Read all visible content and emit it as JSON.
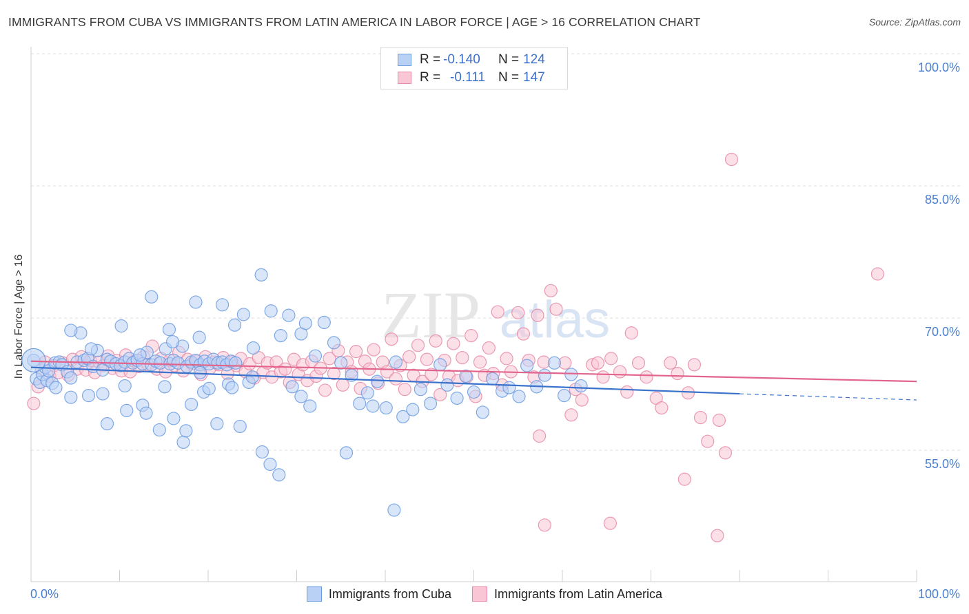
{
  "title": "IMMIGRANTS FROM CUBA VS IMMIGRANTS FROM LATIN AMERICA IN LABOR FORCE | AGE > 16 CORRELATION CHART",
  "source": "Source: ZipAtlas.com",
  "watermark": "ZIPatlas",
  "legend": {
    "r_label": "R =",
    "n_label": "N =",
    "series": [
      {
        "name": "Immigrants from Cuba",
        "r": "-0.140",
        "n": "124",
        "fill": "#b9d1f5",
        "stroke": "#6b9be0"
      },
      {
        "name": "Immigrants from Latin America",
        "r": "-0.111",
        "n": "147",
        "fill": "#f9c6d5",
        "stroke": "#e68aa6"
      }
    ]
  },
  "chart_data": {
    "type": "scatter",
    "title": "IMMIGRANTS FROM CUBA VS IMMIGRANTS FROM LATIN AMERICA IN LABOR FORCE | AGE > 16 CORRELATION CHART",
    "xlabel": "",
    "ylabel": "In Labor Force | Age > 16",
    "xlim": [
      0,
      100
    ],
    "ylim": [
      41,
      100
    ],
    "x_tick_labels": [
      "0.0%",
      "100.0%"
    ],
    "y_tick_labels": [
      "100.0%",
      "85.0%",
      "70.0%",
      "55.0%"
    ],
    "y_ticks": [
      100,
      85,
      70,
      55
    ],
    "grid": true,
    "legend_position": "top-center",
    "series": [
      {
        "name": "Immigrants from Cuba",
        "color": "#6b9be0",
        "fill": "#b9d1f5",
        "trend": {
          "x0": 0,
          "y0": 64.4,
          "x1": 80,
          "y1": 61.4,
          "dash_to_x": 100,
          "dash_to_y": 60.7
        },
        "points": [
          [
            0.3,
            65.2
          ],
          [
            0.6,
            63.1
          ],
          [
            1.0,
            62.7
          ],
          [
            1.3,
            63.6
          ],
          [
            1.6,
            64.4
          ],
          [
            1.8,
            62.9
          ],
          [
            2.0,
            64.0
          ],
          [
            2.4,
            62.6
          ],
          [
            2.7,
            64.9
          ],
          [
            3.2,
            65.0
          ],
          [
            3.5,
            64.7
          ],
          [
            4.1,
            63.9
          ],
          [
            4.5,
            63.2
          ],
          [
            5.2,
            65.0
          ],
          [
            5.6,
            68.3
          ],
          [
            6.0,
            65.2
          ],
          [
            6.4,
            65.4
          ],
          [
            7.0,
            64.5
          ],
          [
            7.5,
            66.3
          ],
          [
            8.1,
            64.1
          ],
          [
            8.6,
            65.3
          ],
          [
            9.0,
            65.1
          ],
          [
            9.6,
            64.8
          ],
          [
            10.1,
            64.6
          ],
          [
            10.6,
            65.0
          ],
          [
            11.1,
            65.4
          ],
          [
            11.5,
            64.9
          ],
          [
            12.0,
            65.2
          ],
          [
            12.6,
            64.8
          ],
          [
            13.1,
            66.1
          ],
          [
            13.6,
            64.7
          ],
          [
            14.1,
            65.1
          ],
          [
            14.6,
            64.9
          ],
          [
            15.2,
            66.5
          ],
          [
            15.7,
            64.8
          ],
          [
            16.1,
            65.2
          ],
          [
            16.6,
            64.9
          ],
          [
            17.1,
            66.8
          ],
          [
            17.6,
            64.5
          ],
          [
            18.1,
            65.0
          ],
          [
            18.6,
            65.2
          ],
          [
            19.1,
            64.7
          ],
          [
            19.6,
            65.1
          ],
          [
            20.1,
            64.8
          ],
          [
            20.6,
            65.3
          ],
          [
            21.1,
            64.9
          ],
          [
            21.6,
            65.0
          ],
          [
            22.1,
            64.7
          ],
          [
            22.6,
            65.1
          ],
          [
            23.1,
            64.9
          ],
          [
            4.5,
            68.6
          ],
          [
            6.8,
            66.5
          ],
          [
            10.2,
            69.1
          ],
          [
            12.3,
            65.8
          ],
          [
            13.6,
            72.4
          ],
          [
            15.6,
            68.7
          ],
          [
            16.0,
            67.3
          ],
          [
            18.6,
            71.8
          ],
          [
            19.0,
            67.8
          ],
          [
            21.6,
            71.5
          ],
          [
            23.0,
            69.2
          ],
          [
            24.0,
            70.4
          ],
          [
            25.1,
            66.6
          ],
          [
            26.0,
            74.9
          ],
          [
            27.1,
            70.8
          ],
          [
            28.2,
            68.0
          ],
          [
            29.1,
            70.3
          ],
          [
            30.5,
            68.2
          ],
          [
            31.0,
            69.4
          ],
          [
            32.1,
            65.7
          ],
          [
            33.1,
            69.5
          ],
          [
            34.2,
            67.2
          ],
          [
            35.0,
            64.9
          ],
          [
            36.2,
            63.5
          ],
          [
            37.1,
            60.3
          ],
          [
            38.0,
            61.5
          ],
          [
            39.1,
            62.8
          ],
          [
            40.1,
            59.8
          ],
          [
            41.2,
            65.0
          ],
          [
            42.0,
            58.8
          ],
          [
            43.1,
            59.6
          ],
          [
            44.0,
            61.9
          ],
          [
            45.1,
            60.3
          ],
          [
            46.2,
            64.7
          ],
          [
            47.0,
            62.4
          ],
          [
            48.1,
            60.9
          ],
          [
            49.1,
            63.4
          ],
          [
            50.0,
            61.6
          ],
          [
            51.0,
            59.3
          ],
          [
            52.1,
            63.1
          ],
          [
            53.2,
            61.7
          ],
          [
            54.0,
            62.1
          ],
          [
            55.1,
            61.1
          ],
          [
            56.0,
            64.6
          ],
          [
            57.1,
            62.2
          ],
          [
            58.0,
            63.5
          ],
          [
            59.1,
            64.9
          ],
          [
            60.2,
            61.2
          ],
          [
            61.0,
            63.6
          ],
          [
            62.1,
            62.3
          ],
          [
            2.8,
            62.1
          ],
          [
            4.5,
            61.0
          ],
          [
            6.5,
            61.2
          ],
          [
            8.1,
            61.4
          ],
          [
            8.6,
            58.0
          ],
          [
            10.6,
            62.3
          ],
          [
            10.8,
            59.5
          ],
          [
            12.6,
            60.1
          ],
          [
            13.0,
            59.2
          ],
          [
            14.5,
            57.3
          ],
          [
            15.1,
            62.2
          ],
          [
            16.1,
            58.6
          ],
          [
            17.2,
            55.9
          ],
          [
            17.5,
            57.2
          ],
          [
            18.1,
            60.2
          ],
          [
            19.1,
            63.8
          ],
          [
            19.5,
            61.6
          ],
          [
            20.1,
            62.0
          ],
          [
            21.0,
            58.0
          ],
          [
            22.3,
            62.5
          ],
          [
            22.7,
            62.1
          ],
          [
            23.6,
            57.7
          ],
          [
            24.6,
            62.7
          ],
          [
            25.0,
            63.3
          ],
          [
            26.1,
            54.8
          ],
          [
            27.0,
            53.4
          ],
          [
            28.0,
            52.2
          ],
          [
            29.5,
            62.2
          ],
          [
            30.5,
            61.1
          ],
          [
            31.5,
            60.0
          ],
          [
            35.6,
            54.7
          ],
          [
            38.6,
            60.0
          ],
          [
            41.0,
            48.2
          ]
        ]
      },
      {
        "name": "Immigrants from Latin America",
        "color": "#e68aa6",
        "fill": "#f9c6d5",
        "trend": {
          "x0": 0,
          "y0": 65.1,
          "x1": 100,
          "y1": 62.8
        },
        "points": [
          [
            0.3,
            60.3
          ],
          [
            0.8,
            62.2
          ],
          [
            1.2,
            64.1
          ],
          [
            1.6,
            65.0
          ],
          [
            2.1,
            63.4
          ],
          [
            2.6,
            64.6
          ],
          [
            3.1,
            63.8
          ],
          [
            3.6,
            64.9
          ],
          [
            4.2,
            63.5
          ],
          [
            4.7,
            65.3
          ],
          [
            5.2,
            64.2
          ],
          [
            5.7,
            65.6
          ],
          [
            6.2,
            64.1
          ],
          [
            6.7,
            65.2
          ],
          [
            7.2,
            63.8
          ],
          [
            7.7,
            65.0
          ],
          [
            8.2,
            64.6
          ],
          [
            8.7,
            65.7
          ],
          [
            9.2,
            64.3
          ],
          [
            9.7,
            65.2
          ],
          [
            10.2,
            64.0
          ],
          [
            10.7,
            65.8
          ],
          [
            11.2,
            63.9
          ],
          [
            11.7,
            65.1
          ],
          [
            12.2,
            64.5
          ],
          [
            12.7,
            65.6
          ],
          [
            13.2,
            64.7
          ],
          [
            13.7,
            66.8
          ],
          [
            14.2,
            64.2
          ],
          [
            14.7,
            65.4
          ],
          [
            15.2,
            63.9
          ],
          [
            15.7,
            65.2
          ],
          [
            16.2,
            64.6
          ],
          [
            16.7,
            66.1
          ],
          [
            17.2,
            64.0
          ],
          [
            17.7,
            65.3
          ],
          [
            18.2,
            64.8
          ],
          [
            18.7,
            65.1
          ],
          [
            19.2,
            63.6
          ],
          [
            19.7,
            65.6
          ],
          [
            20.2,
            64.3
          ],
          [
            20.7,
            65.0
          ],
          [
            21.2,
            64.7
          ],
          [
            21.7,
            65.5
          ],
          [
            22.2,
            63.7
          ],
          [
            22.7,
            65.0
          ],
          [
            23.2,
            64.6
          ],
          [
            23.7,
            65.4
          ],
          [
            24.2,
            63.9
          ],
          [
            24.7,
            64.8
          ],
          [
            25.2,
            63.2
          ],
          [
            25.7,
            65.5
          ],
          [
            26.2,
            63.8
          ],
          [
            26.7,
            64.9
          ],
          [
            27.2,
            63.3
          ],
          [
            27.7,
            65.0
          ],
          [
            28.2,
            63.9
          ],
          [
            28.7,
            64.2
          ],
          [
            29.2,
            62.7
          ],
          [
            29.7,
            65.3
          ],
          [
            30.2,
            63.6
          ],
          [
            30.7,
            64.7
          ],
          [
            31.2,
            62.9
          ],
          [
            31.7,
            65.1
          ],
          [
            32.2,
            63.4
          ],
          [
            32.7,
            64.3
          ],
          [
            33.2,
            61.8
          ],
          [
            33.7,
            65.4
          ],
          [
            34.2,
            63.7
          ],
          [
            34.7,
            66.3
          ],
          [
            35.2,
            62.4
          ],
          [
            35.7,
            65.0
          ],
          [
            36.2,
            63.9
          ],
          [
            36.7,
            66.2
          ],
          [
            37.2,
            62.0
          ],
          [
            37.7,
            65.1
          ],
          [
            38.2,
            64.2
          ],
          [
            38.7,
            66.4
          ],
          [
            39.2,
            62.6
          ],
          [
            39.7,
            65.0
          ],
          [
            40.2,
            63.9
          ],
          [
            40.7,
            67.6
          ],
          [
            41.2,
            63.1
          ],
          [
            41.7,
            64.6
          ],
          [
            42.2,
            61.9
          ],
          [
            42.7,
            65.6
          ],
          [
            43.2,
            63.5
          ],
          [
            43.7,
            66.9
          ],
          [
            44.2,
            62.8
          ],
          [
            44.7,
            65.3
          ],
          [
            45.2,
            63.6
          ],
          [
            45.7,
            67.4
          ],
          [
            46.2,
            61.3
          ],
          [
            46.7,
            65.2
          ],
          [
            47.2,
            63.4
          ],
          [
            47.7,
            67.1
          ],
          [
            48.2,
            62.9
          ],
          [
            48.7,
            65.5
          ],
          [
            49.2,
            63.3
          ],
          [
            49.7,
            68.0
          ],
          [
            50.2,
            61.1
          ],
          [
            50.7,
            65.0
          ],
          [
            51.2,
            63.5
          ],
          [
            51.7,
            66.6
          ],
          [
            52.2,
            63.7
          ],
          [
            52.7,
            70.7
          ],
          [
            53.2,
            62.4
          ],
          [
            53.7,
            65.4
          ],
          [
            54.2,
            63.9
          ],
          [
            55.0,
            70.6
          ],
          [
            55.6,
            68.2
          ],
          [
            56.2,
            65.2
          ],
          [
            56.8,
            63.3
          ],
          [
            57.2,
            70.3
          ],
          [
            57.9,
            65.0
          ],
          [
            58.7,
            73.1
          ],
          [
            59.3,
            71.0
          ],
          [
            60.3,
            64.9
          ],
          [
            61.0,
            59.0
          ],
          [
            61.5,
            61.9
          ],
          [
            62.2,
            60.7
          ],
          [
            63.4,
            64.7
          ],
          [
            64.0,
            64.9
          ],
          [
            64.6,
            63.3
          ],
          [
            65.5,
            65.4
          ],
          [
            66.5,
            63.9
          ],
          [
            67.3,
            61.6
          ],
          [
            67.8,
            68.3
          ],
          [
            68.6,
            64.9
          ],
          [
            69.5,
            63.3
          ],
          [
            70.6,
            60.9
          ],
          [
            71.2,
            59.8
          ],
          [
            72.2,
            64.9
          ],
          [
            73.0,
            63.7
          ],
          [
            74.2,
            61.5
          ],
          [
            74.9,
            64.7
          ],
          [
            75.6,
            58.7
          ],
          [
            76.4,
            56.0
          ],
          [
            77.7,
            58.4
          ],
          [
            78.4,
            54.7
          ],
          [
            79.1,
            88.0
          ],
          [
            95.6,
            75.0
          ],
          [
            57.4,
            56.6
          ],
          [
            58.0,
            46.5
          ],
          [
            65.4,
            46.7
          ],
          [
            77.5,
            45.3
          ],
          [
            73.8,
            51.7
          ]
        ]
      }
    ]
  }
}
